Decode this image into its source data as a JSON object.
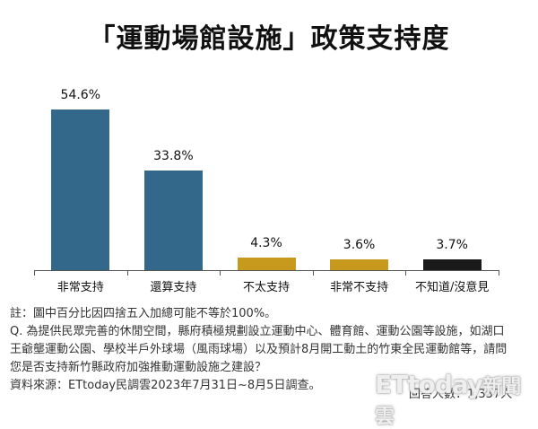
{
  "title": "「運動場館設施」政策支持度",
  "colors": {
    "blue": "#33688A",
    "gold": "#C79A1E",
    "black": "#1A1A1A"
  },
  "chart_data": {
    "type": "bar",
    "title": "「運動場館設施」政策支持度",
    "categories": [
      "非常支持",
      "還算支持",
      "不太支持",
      "非常不支持",
      "不知道/沒意見"
    ],
    "values": [
      54.6,
      33.8,
      4.3,
      3.6,
      3.7
    ],
    "value_labels": [
      "54.6%",
      "33.8%",
      "4.3%",
      "3.6%",
      "3.7%"
    ],
    "bar_colors": [
      "#33688A",
      "#33688A",
      "#C79A1E",
      "#C79A1E",
      "#1A1A1A"
    ],
    "xlabel": "",
    "ylabel": "",
    "ylim": [
      0,
      60
    ],
    "grid": false,
    "legend": "none"
  },
  "notes": {
    "note": "註：圖中百分比因四捨五入加總可能不等於100%。",
    "question_lines": [
      "Q. 為提供民眾完善的休閒空間，縣府積極規劃設立運動中心、體育館、運動公園等設施，如湖口",
      "王爺壟運動公園、學校半戶外球場（風雨球場）以及預計8月開工動土的竹東全民運動館等，請問",
      "您是否支持新竹縣政府加強推動運動設施之建設？"
    ],
    "source": "資料來源：ETtoday民調雲2023年7月31日~8月5日調查。",
    "respondents": "回答人數：1,337人"
  },
  "watermark": {
    "brand": "ETtoday",
    "suffix": "新聞雲"
  }
}
